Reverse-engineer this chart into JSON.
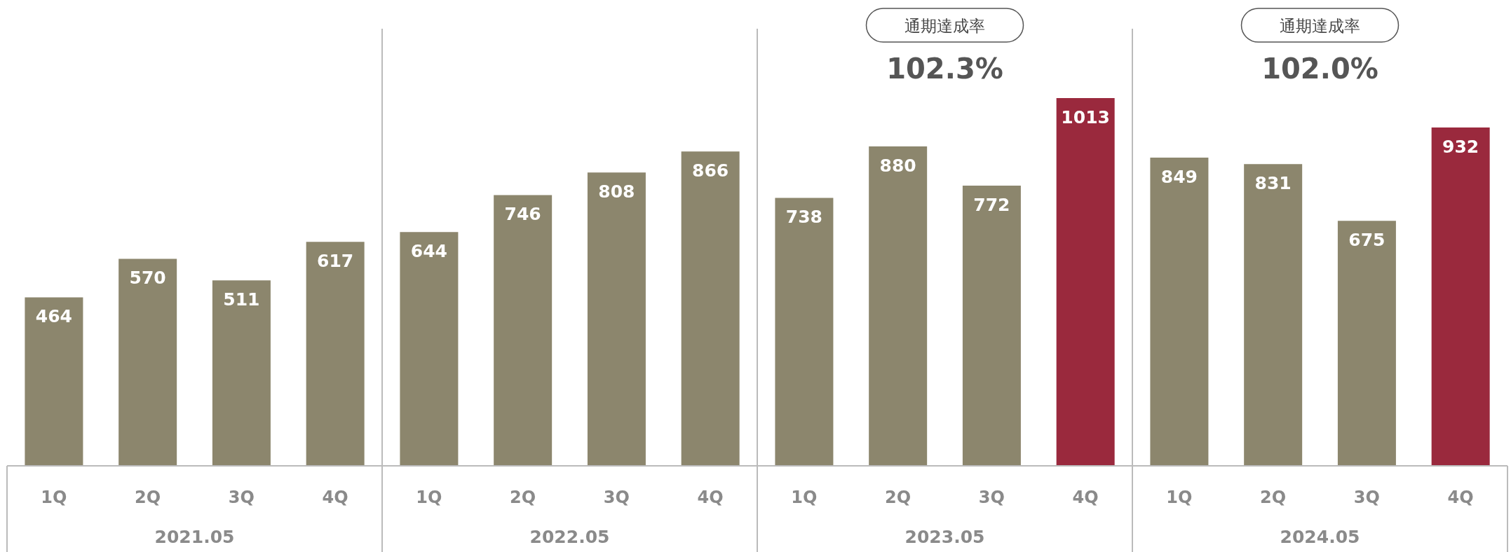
{
  "chart_data": {
    "type": "bar",
    "categories": [
      "1Q",
      "2Q",
      "3Q",
      "4Q",
      "1Q",
      "2Q",
      "3Q",
      "4Q",
      "1Q",
      "2Q",
      "3Q",
      "4Q",
      "1Q",
      "2Q",
      "3Q",
      "4Q"
    ],
    "values": [
      464,
      570,
      511,
      617,
      644,
      746,
      808,
      866,
      738,
      880,
      772,
      1013,
      849,
      831,
      675,
      932
    ],
    "colors": [
      "#8c866d",
      "#8c866d",
      "#8c866d",
      "#8c866d",
      "#8c866d",
      "#8c866d",
      "#8c866d",
      "#8c866d",
      "#8c866d",
      "#8c866d",
      "#8c866d",
      "#9a293d",
      "#8c866d",
      "#8c866d",
      "#8c866d",
      "#9a293d"
    ],
    "data_labels": true,
    "annotations": [
      "2021.05",
      "2022.05",
      "2023.05",
      "2024.05",
      "通期達成率",
      "102.3%",
      "通期達成率",
      "102.0%"
    ]
  }
}
